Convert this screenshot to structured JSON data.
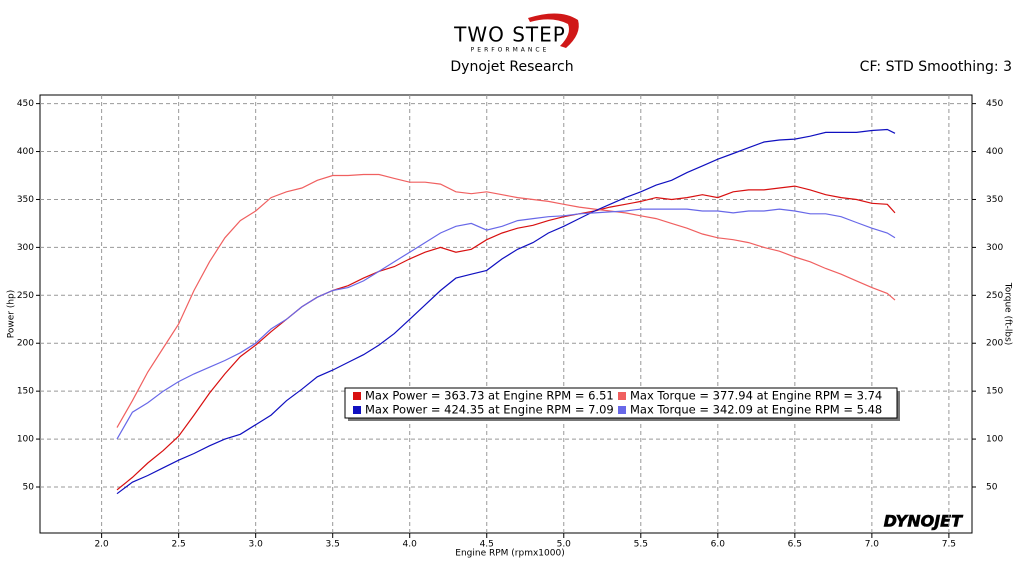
{
  "chart_data": {
    "type": "line",
    "logo": {
      "name": "TWO STEP",
      "tagline": "PERFORMANCE"
    },
    "title": "Dynojet Research",
    "subtitle": "CF: STD Smoothing: 3",
    "brand": "DYNOJET",
    "xlabel": "Engine RPM (rpmx1000)",
    "ylabel": "Power (hp)",
    "y2label": "Torque (ft-lbs)",
    "xlim": [
      1.6,
      7.65
    ],
    "xticks": [
      {
        "value": 2,
        "label": "2.0"
      },
      2.5,
      {
        "value": 3,
        "label": "3.0"
      },
      3.5,
      {
        "value": 4,
        "label": "4.0"
      },
      4.5,
      {
        "value": 5,
        "label": "5.0"
      },
      5.5,
      {
        "value": 6,
        "label": "6.0"
      },
      6.5,
      {
        "value": 7,
        "label": "7.0"
      },
      7.5
    ],
    "ylim": [
      2,
      459
    ],
    "yticks": [
      50,
      100,
      150,
      200,
      250,
      300,
      350,
      400,
      450
    ],
    "y2lim": [
      2,
      459
    ],
    "y2ticks": [
      50,
      100,
      150,
      200,
      250,
      300,
      350,
      400,
      450
    ],
    "grid": true,
    "x": [
      2.1,
      2.2,
      2.3,
      2.4,
      2.5,
      2.6,
      2.7,
      2.8,
      2.9,
      3.0,
      3.1,
      3.2,
      3.3,
      3.4,
      3.5,
      3.6,
      3.7,
      3.8,
      3.9,
      4.0,
      4.1,
      4.2,
      4.3,
      4.4,
      4.5,
      4.6,
      4.7,
      4.8,
      4.9,
      5.0,
      5.1,
      5.2,
      5.3,
      5.4,
      5.5,
      5.6,
      5.7,
      5.8,
      5.9,
      6.0,
      6.1,
      6.2,
      6.3,
      6.4,
      6.5,
      6.6,
      6.7,
      6.8,
      6.9,
      7.0,
      7.1,
      7.15
    ],
    "series": [
      {
        "name": "Max Power = 363.73 at Engine RPM = 6.51",
        "color": "#d81010",
        "values": [
          47,
          60,
          75,
          88,
          103,
          125,
          148,
          168,
          186,
          198,
          212,
          225,
          238,
          248,
          255,
          260,
          268,
          275,
          280,
          288,
          295,
          300,
          295,
          298,
          308,
          315,
          320,
          323,
          328,
          332,
          335,
          338,
          342,
          345,
          348,
          352,
          350,
          352,
          355,
          352,
          358,
          360,
          360,
          362,
          364,
          360,
          355,
          352,
          350,
          346,
          345,
          336
        ]
      },
      {
        "name": "Max Torque = 377.94 at Engine RPM = 3.74",
        "color": "#f06060",
        "axis": "y2",
        "values": [
          112,
          140,
          170,
          195,
          220,
          255,
          285,
          310,
          328,
          338,
          352,
          358,
          362,
          370,
          375,
          375,
          376,
          376,
          372,
          368,
          368,
          366,
          358,
          356,
          358,
          355,
          352,
          350,
          348,
          345,
          342,
          340,
          338,
          336,
          333,
          330,
          325,
          320,
          314,
          310,
          308,
          305,
          300,
          296,
          290,
          285,
          278,
          272,
          265,
          258,
          252,
          245
        ]
      },
      {
        "name": "Max Power = 424.35 at Engine RPM = 7.09",
        "color": "#1010c0",
        "values": [
          43,
          55,
          62,
          70,
          78,
          85,
          93,
          100,
          105,
          115,
          125,
          140,
          152,
          165,
          172,
          180,
          188,
          198,
          210,
          225,
          240,
          255,
          268,
          272,
          276,
          288,
          298,
          305,
          315,
          322,
          330,
          338,
          345,
          352,
          358,
          365,
          370,
          378,
          385,
          392,
          398,
          404,
          410,
          412,
          413,
          416,
          420,
          420,
          420,
          422,
          423,
          419
        ]
      },
      {
        "name": "Max Torque = 342.09 at Engine RPM = 5.48",
        "color": "#6868e8",
        "axis": "y2",
        "values": [
          100,
          128,
          138,
          150,
          160,
          168,
          175,
          182,
          190,
          200,
          215,
          225,
          238,
          248,
          255,
          258,
          265,
          275,
          285,
          295,
          305,
          315,
          322,
          325,
          318,
          322,
          328,
          330,
          332,
          333,
          335,
          336,
          337,
          338,
          340,
          340,
          340,
          340,
          338,
          338,
          336,
          338,
          338,
          340,
          338,
          335,
          335,
          332,
          326,
          320,
          315,
          310
        ]
      }
    ]
  }
}
